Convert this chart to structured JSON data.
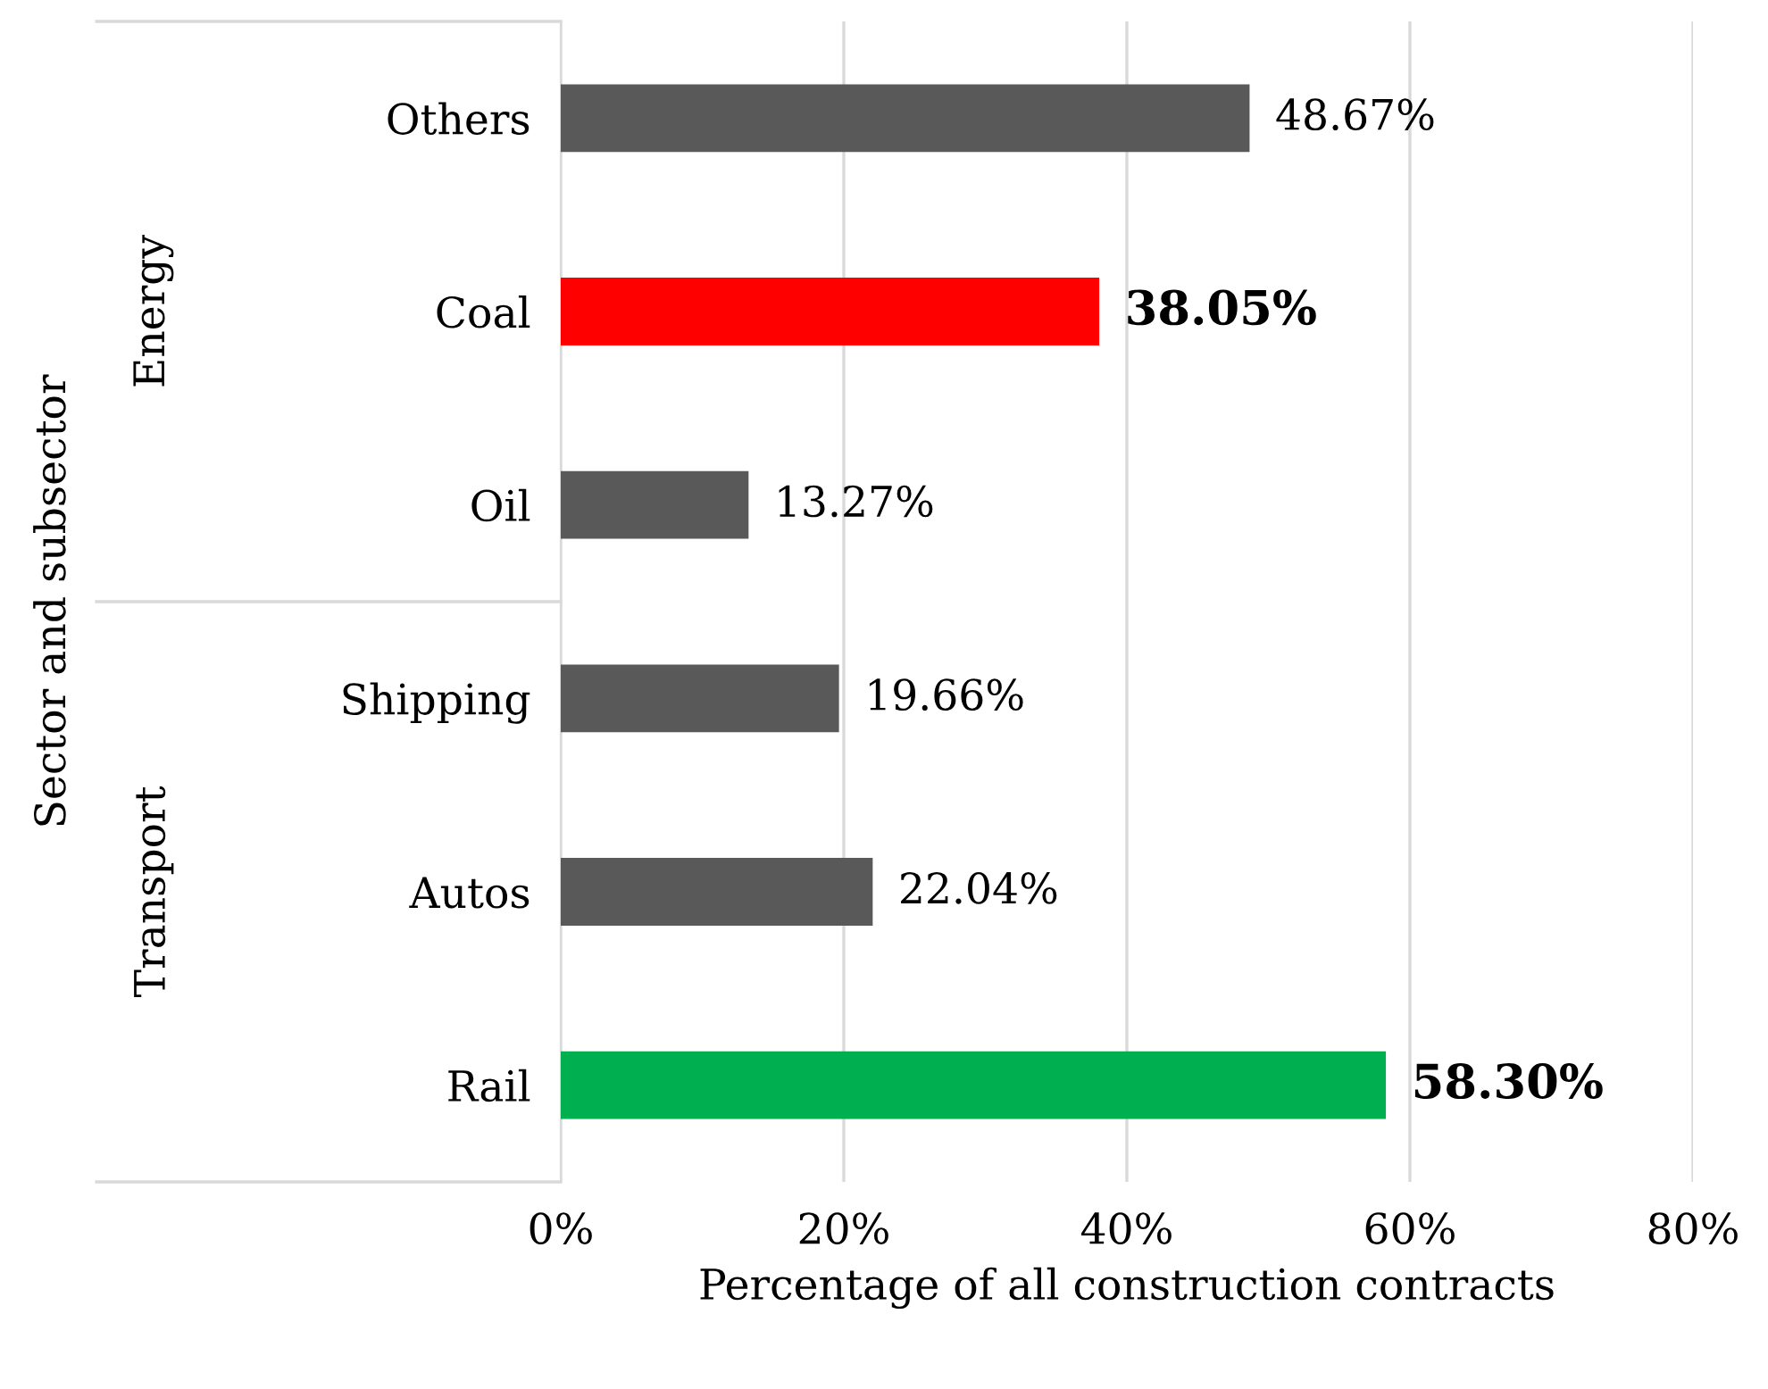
{
  "chart_data": {
    "type": "bar",
    "orientation": "horizontal",
    "categories": [
      "Others",
      "Coal",
      "Oil",
      "Shipping",
      "Autos",
      "Rail"
    ],
    "values": [
      48.67,
      38.05,
      13.27,
      19.66,
      22.04,
      58.3
    ],
    "colors": [
      "#595959",
      "#ff0000",
      "#595959",
      "#595959",
      "#595959",
      "#00b050"
    ],
    "value_labels": [
      "48.67%",
      "38.05%",
      "13.27%",
      "19.66%",
      "22.04%",
      "58.30%"
    ],
    "xlim": [
      0,
      80
    ],
    "xticks": [
      {
        "value": 0,
        "label": "0%"
      },
      {
        "value": 20,
        "label": "20%"
      },
      {
        "value": 40,
        "label": "40%"
      },
      {
        "value": 60,
        "label": "60%"
      },
      {
        "value": 80,
        "label": "80%"
      }
    ],
    "xlabel": "Percentage of all construction contracts",
    "annotations": [
      "Sector and subsector",
      "Energy",
      "Transport"
    ],
    "grid": "x"
  }
}
